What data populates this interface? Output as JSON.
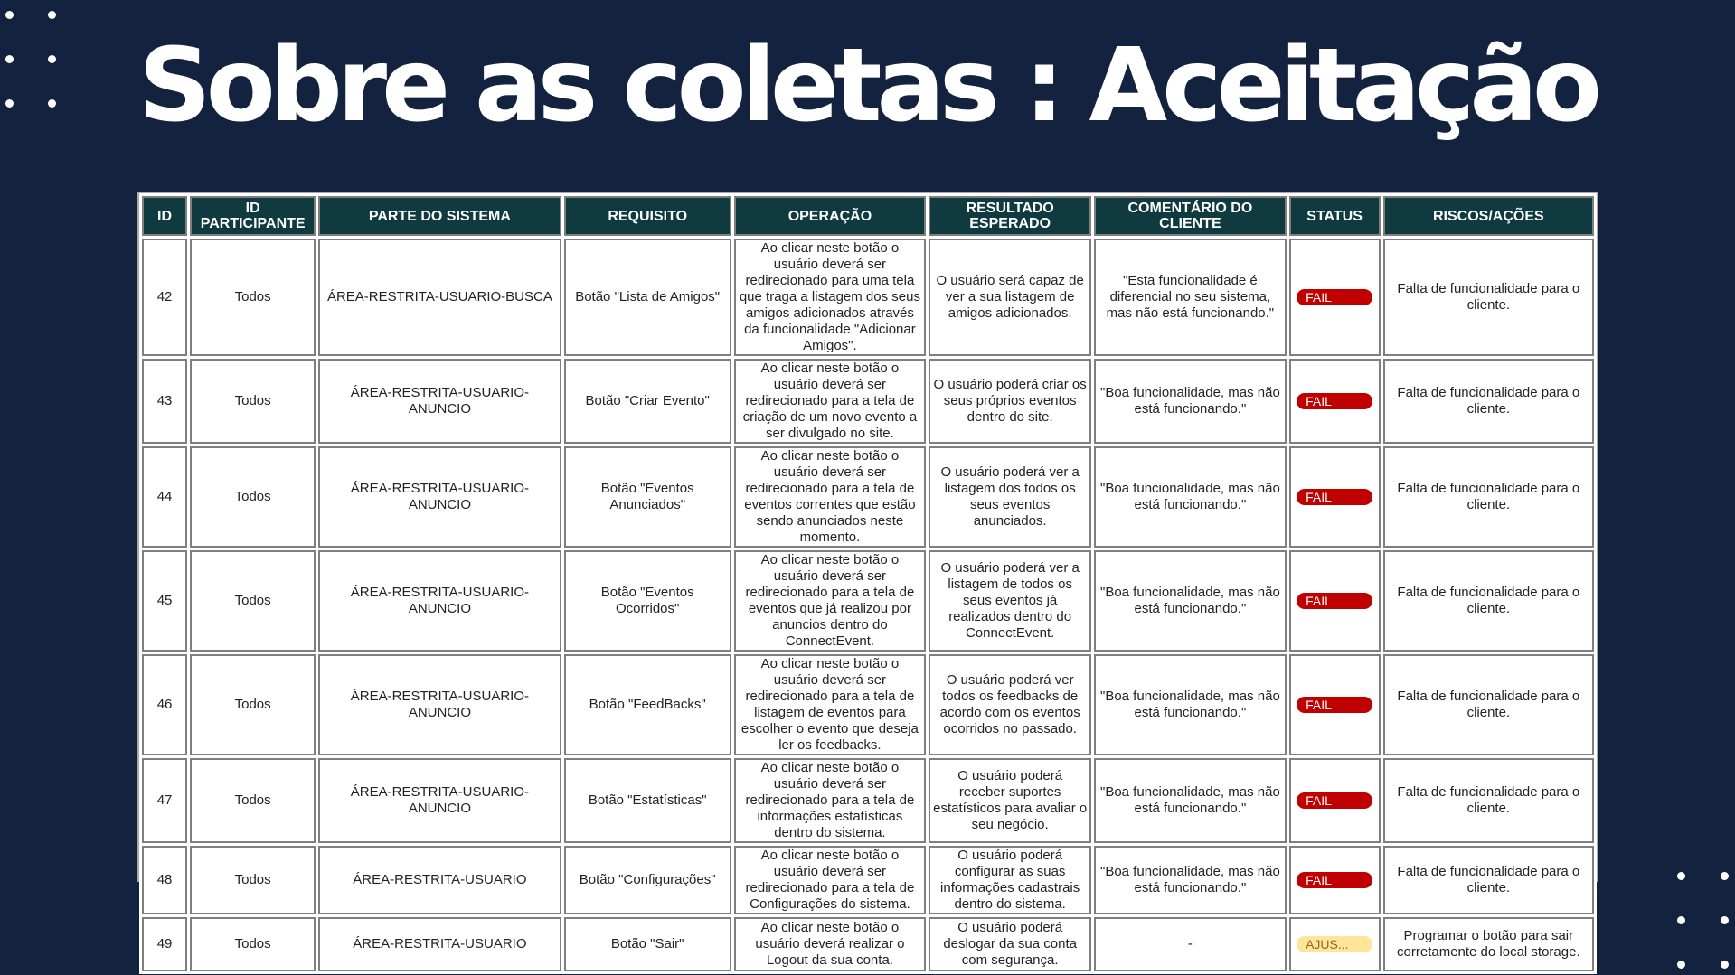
{
  "title": "Sobre as coletas : Aceitação",
  "colors": {
    "background": "#13233f",
    "header": "#0e3a40",
    "fail": "#c00000",
    "adjust": "#ffe599"
  },
  "table": {
    "headers": [
      "ID",
      "ID PARTICIPANTE",
      "PARTE DO SISTEMA",
      "REQUISITO",
      "OPERAÇÃO",
      "RESULTADO ESPERADO",
      "COMENTÁRIO DO CLIENTE",
      "STATUS",
      "RISCOS/AÇÕES"
    ],
    "rows": [
      {
        "id": "42",
        "participant": "Todos",
        "part": "ÁREA-RESTRITA-USUARIO-BUSCA",
        "requirement": "Botão \"Lista de Amigos\"",
        "operation": "Ao clicar neste botão o usuário deverá ser redirecionado para uma tela que traga a listagem dos seus amigos adicionados através da funcionalidade \"Adicionar Amigos\".",
        "expected": "O usuário será capaz de ver a sua listagem de amigos adicionados.",
        "comment": "\"Esta funcionalidade é diferencial no seu sistema, mas não está funcionando.\"",
        "status": "FAIL",
        "status_type": "fail",
        "risks": "Falta de funcionalidade para o cliente."
      },
      {
        "id": "43",
        "participant": "Todos",
        "part": "ÁREA-RESTRITA-USUARIO-ANUNCIO",
        "requirement": "Botão \"Criar Evento\"",
        "operation": "Ao clicar neste botão o usuário deverá ser redirecionado para a tela de criação de um novo evento a ser divulgado no site.",
        "expected": "O usuário poderá criar os seus próprios eventos dentro do site.",
        "comment": "\"Boa funcionalidade, mas não está funcionando.\"",
        "status": "FAIL",
        "status_type": "fail",
        "risks": "Falta de funcionalidade para o cliente."
      },
      {
        "id": "44",
        "participant": "Todos",
        "part": "ÁREA-RESTRITA-USUARIO-ANUNCIO",
        "requirement": "Botão \"Eventos Anunciados\"",
        "operation": "Ao clicar neste botão o usuário deverá ser redirecionado para a tela de eventos correntes que estão sendo anunciados neste momento.",
        "expected": "O usuário poderá ver a listagem dos todos os seus eventos anunciados.",
        "comment": "\"Boa funcionalidade, mas não está funcionando.\"",
        "status": "FAIL",
        "status_type": "fail",
        "risks": "Falta de funcionalidade para o cliente."
      },
      {
        "id": "45",
        "participant": "Todos",
        "part": "ÁREA-RESTRITA-USUARIO-ANUNCIO",
        "requirement": "Botão \"Eventos Ocorridos\"",
        "operation": "Ao clicar neste botão o usuário deverá ser redirecionado para a tela de eventos que já realizou por anuncios dentro do ConnectEvent.",
        "expected": "O usuário poderá ver a listagem de todos os seus eventos já realizados dentro do ConnectEvent.",
        "comment": "\"Boa funcionalidade, mas não está funcionando.\"",
        "status": "FAIL",
        "status_type": "fail",
        "risks": "Falta de funcionalidade para o cliente."
      },
      {
        "id": "46",
        "participant": "Todos",
        "part": "ÁREA-RESTRITA-USUARIO-ANUNCIO",
        "requirement": "Botão \"FeedBacks\"",
        "operation": "Ao clicar neste botão o usuário deverá ser redirecionado para a tela de listagem de eventos para escolher o evento que deseja ler os feedbacks.",
        "expected": "O usuário poderá ver todos os feedbacks de acordo com os eventos ocorridos no passado.",
        "comment": "\"Boa funcionalidade, mas não está funcionando.\"",
        "status": "FAIL",
        "status_type": "fail",
        "risks": "Falta de funcionalidade para o cliente."
      },
      {
        "id": "47",
        "participant": "Todos",
        "part": "ÁREA-RESTRITA-USUARIO-ANUNCIO",
        "requirement": "Botão \"Estatísticas\"",
        "operation": "Ao clicar neste botão o usuário deverá ser redirecionado para a tela de informações estatísticas dentro do sistema.",
        "expected": "O usuário poderá receber suportes estatísticos para avaliar o seu negócio.",
        "comment": "\"Boa funcionalidade, mas não está funcionando.\"",
        "status": "FAIL",
        "status_type": "fail",
        "risks": "Falta de funcionalidade para o cliente."
      },
      {
        "id": "48",
        "participant": "Todos",
        "part": "ÁREA-RESTRITA-USUARIO",
        "requirement": "Botão \"Configurações\"",
        "operation": "Ao clicar neste botão o usuário deverá ser redirecionado para a tela de Configurações do sistema.",
        "expected": "O usuário poderá configurar as suas informações cadastrais dentro do sistema.",
        "comment": "\"Boa funcionalidade, mas não está funcionando.\"",
        "status": "FAIL",
        "status_type": "fail",
        "risks": "Falta de funcionalidade para o cliente."
      },
      {
        "id": "49",
        "participant": "Todos",
        "part": "ÁREA-RESTRITA-USUARIO",
        "requirement": "Botão \"Sair\"",
        "operation": "Ao clicar neste botão o usuário deverá realizar o Logout da sua conta.",
        "expected": "O usuário poderá deslogar da sua conta com segurança.",
        "comment": "-",
        "status": "AJUS...",
        "status_type": "adjust",
        "risks": "Programar o botão para sair corretamente do local storage."
      }
    ]
  }
}
